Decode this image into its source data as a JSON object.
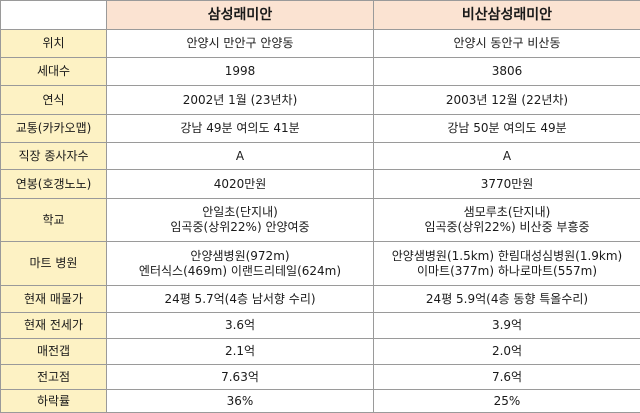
{
  "header": {
    "corner": "",
    "col1": "삼성래미안",
    "col2": "비산삼성래미안"
  },
  "rows": [
    {
      "label": "위치",
      "a": [
        "안양시 만안구 안양동"
      ],
      "b": [
        "안양시 동안구 비산동"
      ]
    },
    {
      "label": "세대수",
      "a": [
        "1998"
      ],
      "b": [
        "3806"
      ]
    },
    {
      "label": "연식",
      "a": [
        "2002년 1월 (23년차)"
      ],
      "b": [
        "2003년 12월 (22년차)"
      ]
    },
    {
      "label": "교통(카카오맵)",
      "a": [
        "강남 49분 여의도 41분"
      ],
      "b": [
        "강남 50분 여의도 49분"
      ]
    },
    {
      "label": "직장 종사자수",
      "a": [
        "A"
      ],
      "b": [
        "A"
      ]
    },
    {
      "label": "연봉(호갱노노)",
      "a": [
        "4020만원"
      ],
      "b": [
        "3770만원"
      ]
    },
    {
      "label": "학교",
      "a": [
        "안일초(단지내)",
        "임곡중(상위22%) 안양여중"
      ],
      "b": [
        "샘모루초(단지내)",
        "임곡중(상위22%) 비산중 부흥중"
      ]
    },
    {
      "label": "마트 병원",
      "a": [
        "안양샘병원(972m)",
        "엔터식스(469m) 이랜드리테일(624m)"
      ],
      "b": [
        "안양샘병원(1.5km) 한림대성심병원(1.9km)",
        "이마트(377m) 하나로마트(557m)"
      ]
    },
    {
      "label": "현재 매물가",
      "a": [
        "24평 5.7억(4층 남서향 수리)"
      ],
      "b": [
        "24평 5.9억(4층 동향 특올수리)"
      ]
    },
    {
      "label": "현재 전세가",
      "a": [
        "3.6억"
      ],
      "b": [
        "3.9억"
      ]
    },
    {
      "label": "매전갭",
      "a": [
        "2.1억"
      ],
      "b": [
        "2.0억"
      ]
    },
    {
      "label": "전고점",
      "a": [
        "7.63억"
      ],
      "b": [
        "7.6억"
      ]
    },
    {
      "label": "하락률",
      "a": [
        "36%"
      ],
      "b": [
        "25%"
      ]
    }
  ]
}
